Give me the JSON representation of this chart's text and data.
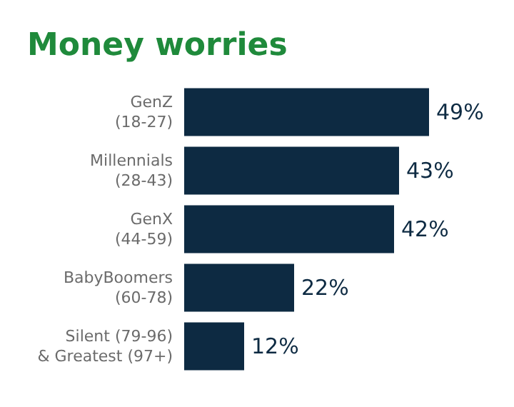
{
  "chart_data": {
    "type": "bar",
    "orientation": "horizontal",
    "title": "Money worries",
    "categories": [
      "GenZ\n(18-27)",
      "Millennials\n(28-43)",
      "GenX\n(44-59)",
      "BabyBoomers\n(60-78)",
      "Silent (79-96)\n& Greatest (97+)"
    ],
    "values": [
      49,
      43,
      42,
      22,
      12
    ],
    "value_labels": [
      "49%",
      "43%",
      "42%",
      "22%",
      "12%"
    ],
    "color": "#0d2a42"
  }
}
